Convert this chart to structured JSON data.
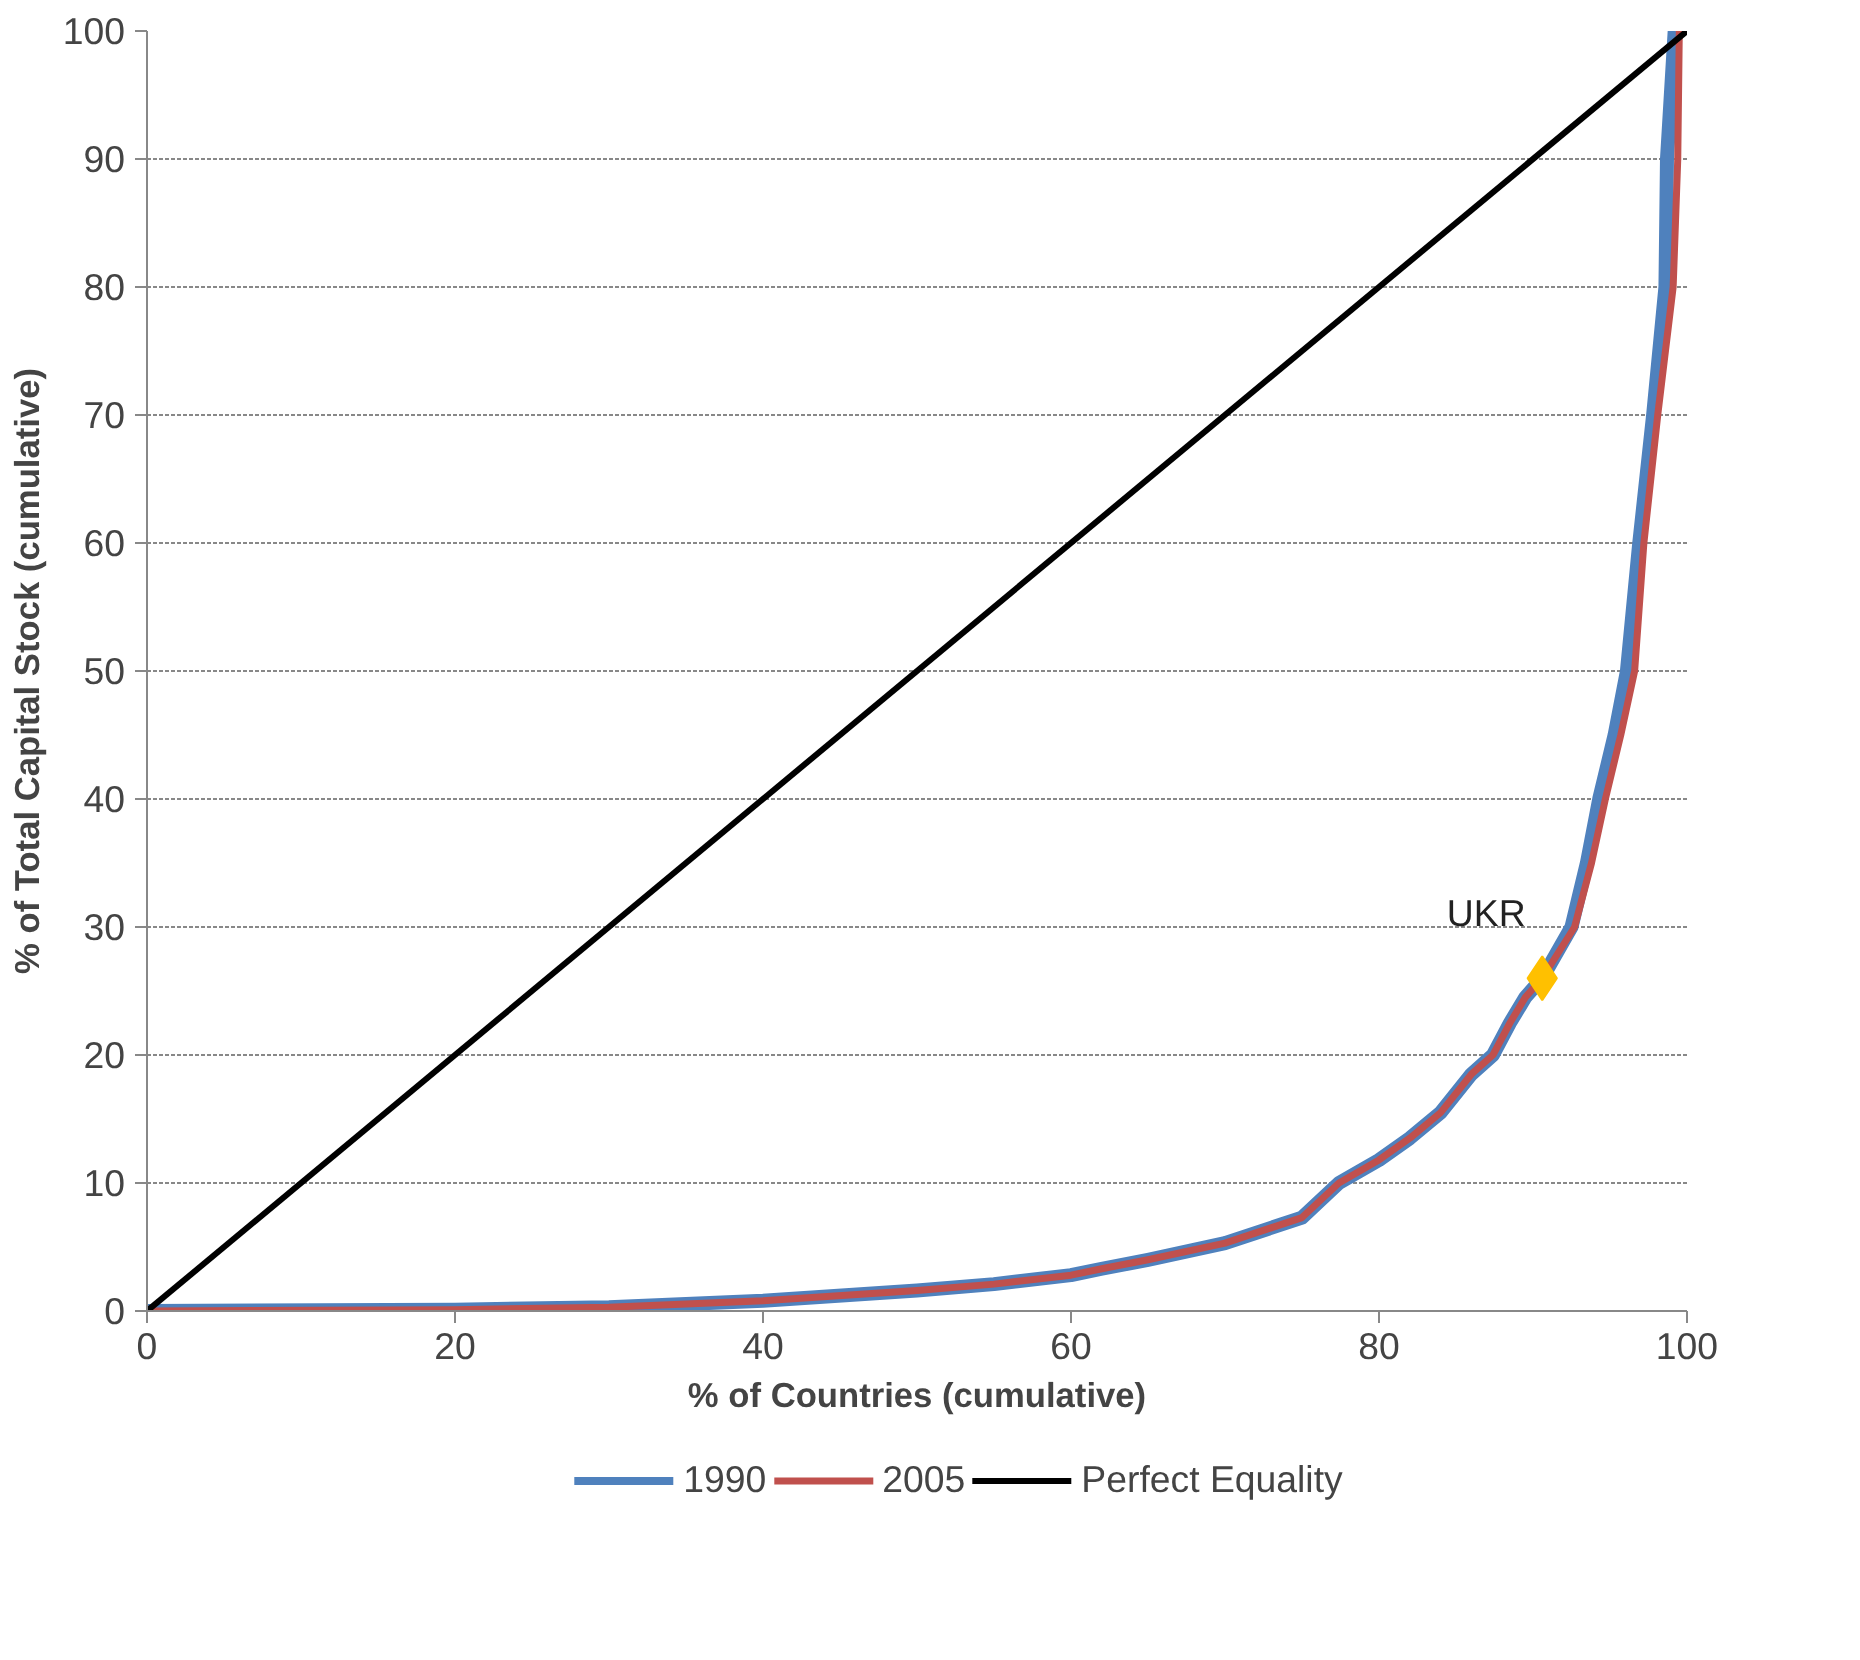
{
  "chart_data": {
    "type": "line",
    "xlabel": "% of Countries (cumulative)",
    "ylabel": "% of Total Capital Stock (cumulative)",
    "xlim": [
      0,
      100
    ],
    "ylim": [
      0,
      100
    ],
    "xticks": [
      0,
      20,
      40,
      60,
      80,
      100
    ],
    "yticks": [
      0,
      10,
      20,
      30,
      40,
      50,
      60,
      70,
      80,
      90,
      100
    ],
    "grid": "y",
    "legend": "bottom",
    "marker": "none",
    "series": [
      {
        "name": "1990",
        "color": "#4f81bd",
        "x": [
          0,
          20,
          30,
          40,
          50,
          55,
          60,
          62,
          65,
          70,
          75,
          77.4,
          80,
          82,
          84,
          86,
          87.4,
          88.5,
          89.5,
          90.6,
          92.5,
          93.5,
          94.3,
          95.3,
          96.1,
          96.9,
          97.8,
          98.6,
          98.7,
          99.2
        ],
        "values": [
          0,
          0.1,
          0.3,
          0.8,
          1.6,
          2.1,
          2.8,
          3.3,
          4.0,
          5.3,
          7.3,
          10,
          11.8,
          13.5,
          15.5,
          18.5,
          20,
          22.5,
          24.5,
          26,
          30,
          35,
          40,
          45,
          50,
          60,
          70,
          80,
          90,
          100
        ]
      },
      {
        "name": "2005",
        "color": "#c0504d",
        "x": [
          0,
          20,
          30,
          40,
          50,
          55,
          60,
          62,
          65,
          70,
          75,
          77.4,
          80,
          82,
          84,
          86,
          87.4,
          88.5,
          89.5,
          90.6,
          92.7,
          93.8,
          94.7,
          95.7,
          96.6,
          97.2,
          98.1,
          99.1,
          99.4,
          99.5
        ],
        "values": [
          0,
          0.1,
          0.3,
          0.8,
          1.6,
          2.1,
          2.8,
          3.3,
          4.0,
          5.3,
          7.3,
          10,
          11.8,
          13.5,
          15.5,
          18.5,
          20,
          22.5,
          24.5,
          26,
          30,
          35,
          40,
          45,
          50,
          60,
          70,
          80,
          90,
          100
        ]
      },
      {
        "name": "Perfect Equality",
        "color": "#000000",
        "x": [
          0,
          100
        ],
        "values": [
          0,
          100
        ]
      },
      {
        "type": "scatter",
        "marker": "diamond",
        "color": "#ffc000",
        "x": [
          90.6
        ],
        "values": [
          26
        ]
      }
    ],
    "annotations": [
      {
        "text": "UKR",
        "x": 90.6,
        "y": 26
      }
    ]
  }
}
